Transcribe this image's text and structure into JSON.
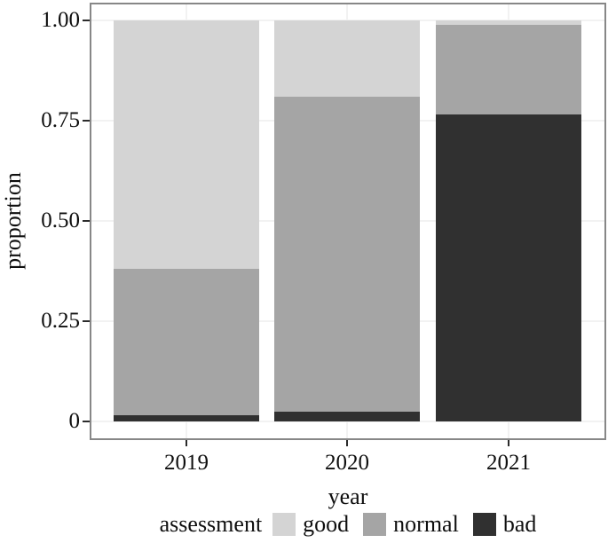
{
  "chart_data": {
    "type": "bar",
    "stacked": true,
    "orientation": "vertical",
    "xlabel": "year",
    "ylabel": "proportion",
    "legend_title": "assessment",
    "legend_position": "bottom",
    "grid": true,
    "ylim": [
      0,
      1
    ],
    "categories": [
      "2019",
      "2020",
      "2021"
    ],
    "series": [
      {
        "name": "good",
        "color": "#d4d4d4",
        "values": [
          0.62,
          0.19,
          0.01
        ]
      },
      {
        "name": "normal",
        "color": "#a5a5a5",
        "values": [
          0.365,
          0.785,
          0.225
        ]
      },
      {
        "name": "bad",
        "color": "#303030",
        "values": [
          0.015,
          0.025,
          0.765
        ]
      }
    ],
    "stack_order_bottom_to_top": [
      "bad",
      "normal",
      "good"
    ],
    "y_ticks": [
      {
        "value": 0,
        "label": "0"
      },
      {
        "value": 0.25,
        "label": "0.25"
      },
      {
        "value": 0.5,
        "label": "0.50"
      },
      {
        "value": 0.75,
        "label": "0.75"
      },
      {
        "value": 1,
        "label": "1.00"
      }
    ]
  },
  "colors": {
    "panel_border": "#878787",
    "gridline": "#f2f2f2",
    "tick_mark": "#2b2b2b",
    "text": "#0f0f0f",
    "background": "#ffffff"
  }
}
